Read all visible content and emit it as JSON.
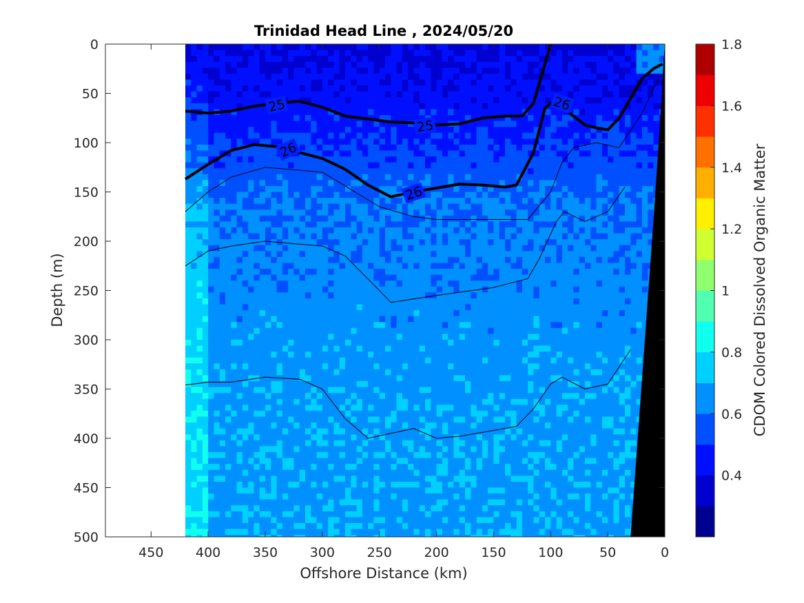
{
  "chart_data": {
    "type": "heatmap",
    "title": "Trinidad Head Line , 2024/05/20",
    "xlabel": "Offshore Distance (km)",
    "ylabel": "Depth (m)",
    "colorbar_label": "CDOM Colored Dissolved Organic Matter",
    "xlim": [
      490,
      0
    ],
    "ylim": [
      500,
      0
    ],
    "data_x_range": [
      420,
      0
    ],
    "x_ticks": [
      450,
      400,
      350,
      300,
      250,
      200,
      150,
      100,
      50,
      0
    ],
    "y_ticks": [
      0,
      50,
      100,
      150,
      200,
      250,
      300,
      350,
      400,
      450,
      500
    ],
    "color_range": [
      0.2,
      1.8
    ],
    "color_ticks": [
      0.4,
      0.6,
      0.8,
      1,
      1.2,
      1.4,
      1.6,
      1.8
    ],
    "colormap": [
      "#00008f",
      "#0000cf",
      "#0010ff",
      "#0050ff",
      "#0090ff",
      "#00d0ff",
      "#10ffef",
      "#50ffaf",
      "#90ff6f",
      "#cfff30",
      "#ffef00",
      "#ffaf00",
      "#ff7000",
      "#ff3000",
      "#ef0000",
      "#af0000"
    ],
    "cdom_profile": [
      {
        "depth": 0,
        "value": 0.38
      },
      {
        "depth": 60,
        "value": 0.44
      },
      {
        "depth": 110,
        "value": 0.52
      },
      {
        "depth": 160,
        "value": 0.6
      },
      {
        "depth": 250,
        "value": 0.64
      },
      {
        "depth": 350,
        "value": 0.67
      },
      {
        "depth": 500,
        "value": 0.68
      }
    ],
    "isopycnals": [
      {
        "label": "25",
        "bold": true,
        "points": [
          [
            420,
            68
          ],
          [
            400,
            70
          ],
          [
            380,
            68
          ],
          [
            360,
            63
          ],
          [
            340,
            60
          ],
          [
            320,
            58
          ],
          [
            300,
            64
          ],
          [
            280,
            73
          ],
          [
            260,
            76
          ],
          [
            240,
            79
          ],
          [
            220,
            80
          ],
          [
            200,
            82
          ],
          [
            180,
            81
          ],
          [
            160,
            75
          ],
          [
            140,
            73
          ],
          [
            125,
            73
          ],
          [
            115,
            60
          ],
          [
            105,
            20
          ],
          [
            100,
            0
          ]
        ]
      },
      {
        "label": "26",
        "bold": true,
        "points": [
          [
            420,
            137
          ],
          [
            400,
            122
          ],
          [
            380,
            108
          ],
          [
            360,
            102
          ],
          [
            340,
            104
          ],
          [
            320,
            110
          ],
          [
            300,
            116
          ],
          [
            280,
            127
          ],
          [
            260,
            143
          ],
          [
            240,
            155
          ],
          [
            220,
            150
          ],
          [
            200,
            146
          ],
          [
            180,
            142
          ],
          [
            160,
            143
          ],
          [
            140,
            145
          ],
          [
            130,
            143
          ],
          [
            115,
            110
          ],
          [
            105,
            65
          ],
          [
            100,
            60
          ],
          [
            90,
            65
          ],
          [
            80,
            73
          ],
          [
            70,
            82
          ],
          [
            60,
            85
          ],
          [
            50,
            87
          ],
          [
            40,
            75
          ],
          [
            30,
            55
          ],
          [
            20,
            35
          ],
          [
            10,
            25
          ],
          [
            2,
            20
          ]
        ]
      },
      {
        "label": "",
        "bold": false,
        "points": [
          [
            420,
            170
          ],
          [
            400,
            150
          ],
          [
            380,
            135
          ],
          [
            350,
            125
          ],
          [
            300,
            130
          ],
          [
            250,
            165
          ],
          [
            220,
            175
          ],
          [
            200,
            178
          ],
          [
            150,
            178
          ],
          [
            120,
            178
          ],
          [
            100,
            150
          ],
          [
            90,
            120
          ],
          [
            80,
            105
          ],
          [
            60,
            100
          ],
          [
            40,
            105
          ],
          [
            20,
            70
          ],
          [
            10,
            45
          ],
          [
            2,
            30
          ]
        ]
      },
      {
        "label": "",
        "bold": false,
        "points": [
          [
            420,
            225
          ],
          [
            400,
            210
          ],
          [
            380,
            205
          ],
          [
            350,
            200
          ],
          [
            320,
            203
          ],
          [
            300,
            205
          ],
          [
            280,
            215
          ],
          [
            250,
            250
          ],
          [
            240,
            262
          ],
          [
            200,
            255
          ],
          [
            150,
            247
          ],
          [
            120,
            238
          ],
          [
            110,
            218
          ],
          [
            95,
            180
          ],
          [
            88,
            170
          ],
          [
            70,
            180
          ],
          [
            50,
            170
          ],
          [
            35,
            145
          ]
        ]
      },
      {
        "label": "",
        "bold": false,
        "points": [
          [
            420,
            346
          ],
          [
            400,
            343
          ],
          [
            380,
            343
          ],
          [
            350,
            338
          ],
          [
            320,
            340
          ],
          [
            300,
            350
          ],
          [
            280,
            380
          ],
          [
            260,
            400
          ],
          [
            240,
            395
          ],
          [
            220,
            390
          ],
          [
            200,
            400
          ],
          [
            180,
            398
          ],
          [
            150,
            392
          ],
          [
            130,
            388
          ],
          [
            115,
            370
          ],
          [
            100,
            345
          ],
          [
            90,
            338
          ],
          [
            70,
            350
          ],
          [
            50,
            345
          ],
          [
            30,
            310
          ]
        ]
      }
    ]
  }
}
